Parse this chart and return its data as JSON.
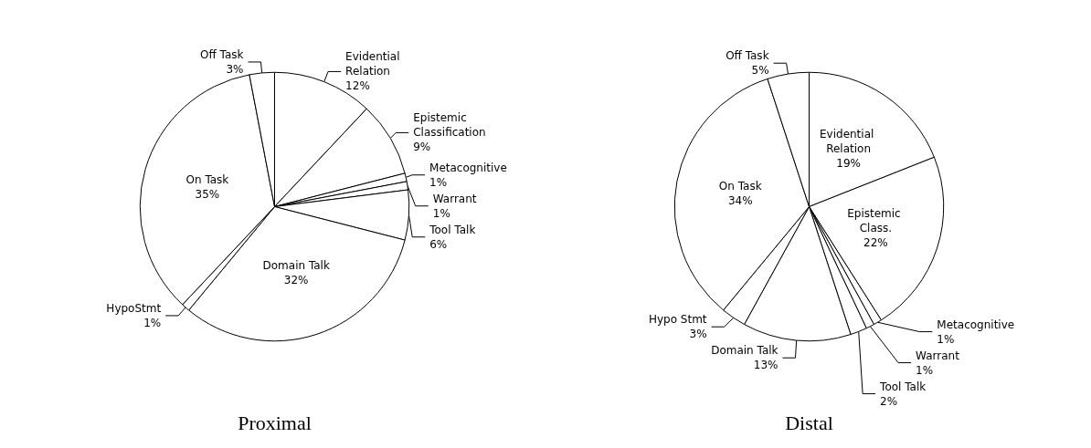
{
  "chart_data": [
    {
      "type": "pie",
      "title": "Proximal",
      "categories": [
        "Evidential Relation",
        "Epistemic Classification",
        "Metacognitive",
        "Warrant",
        "Tool Talk",
        "Domain Talk",
        "HypoStmt",
        "On Task",
        "Off Task"
      ],
      "values": [
        12,
        9,
        1,
        1,
        6,
        32,
        1,
        35,
        3
      ],
      "value_labels": [
        "12%",
        "9%",
        "1%",
        "1%",
        "6%",
        "32%",
        "1%",
        "35%",
        "3%"
      ],
      "colors": [
        "#ffffff",
        "#ffffff",
        "#ffffff",
        "#ffffff",
        "#ffffff",
        "#ffffff",
        "#ffffff",
        "#ffffff",
        "#ffffff"
      ],
      "data_labels": true,
      "legend": false
    },
    {
      "type": "pie",
      "title": "Distal",
      "categories": [
        "Evidential Relation",
        "Epistemic Class.",
        "Metacognitive",
        "Warrant",
        "Tool Talk",
        "Domain Talk",
        "Hypo Stmt",
        "On Task",
        "Off Task"
      ],
      "values": [
        19,
        22,
        1,
        1,
        2,
        13,
        3,
        34,
        5
      ],
      "value_labels": [
        "19%",
        "22%",
        "1%",
        "1%",
        "2%",
        "13%",
        "3%",
        "34%",
        "5%"
      ],
      "colors": [
        "#ffffff",
        "#ffffff",
        "#ffffff",
        "#ffffff",
        "#ffffff",
        "#ffffff",
        "#ffffff",
        "#ffffff",
        "#ffffff"
      ],
      "data_labels": true,
      "legend": false
    }
  ]
}
